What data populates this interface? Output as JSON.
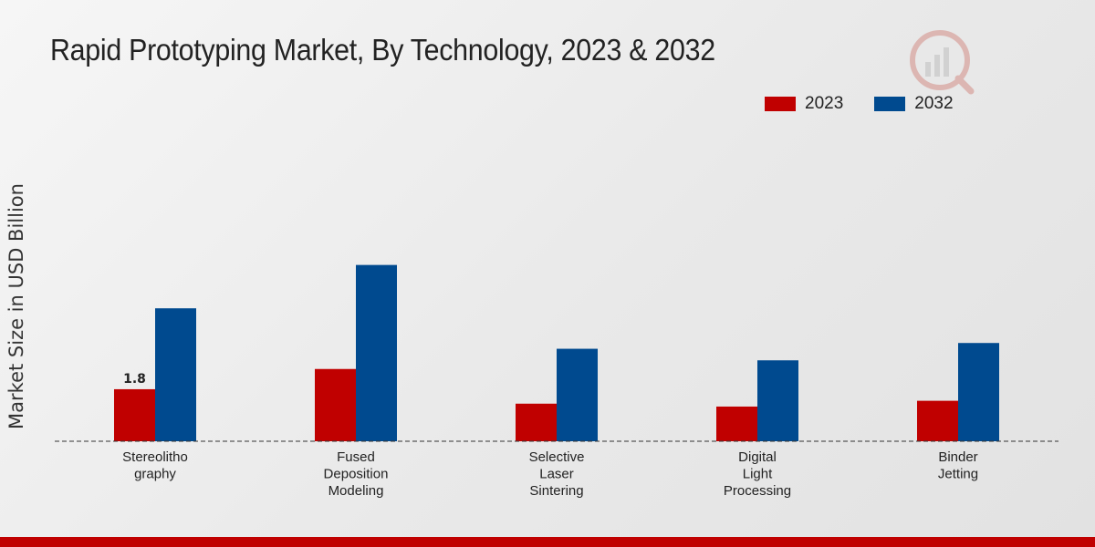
{
  "chart_data": {
    "type": "bar",
    "title": "Rapid Prototyping Market, By Technology, 2023 & 2032",
    "xlabel": "",
    "ylabel": "Market Size in USD Billion",
    "categories": [
      [
        "Stereolitho",
        "graphy"
      ],
      [
        "Fused",
        "Deposition",
        "Modeling"
      ],
      [
        "Selective",
        "Laser",
        "Sintering"
      ],
      [
        "Digital",
        "Light",
        "Processing"
      ],
      [
        "Binder",
        "Jetting"
      ]
    ],
    "series": [
      {
        "name": "2023",
        "color": "#c00000",
        "values": [
          1.8,
          2.5,
          1.3,
          1.2,
          1.4
        ]
      },
      {
        "name": "2032",
        "color": "#004a8f",
        "values": [
          4.6,
          6.1,
          3.2,
          2.8,
          3.4
        ]
      }
    ],
    "data_labels": [
      {
        "series": 0,
        "index": 0,
        "text": "1.8"
      }
    ],
    "ylim": [
      0,
      10
    ],
    "grid": false,
    "legend": "top-right"
  }
}
